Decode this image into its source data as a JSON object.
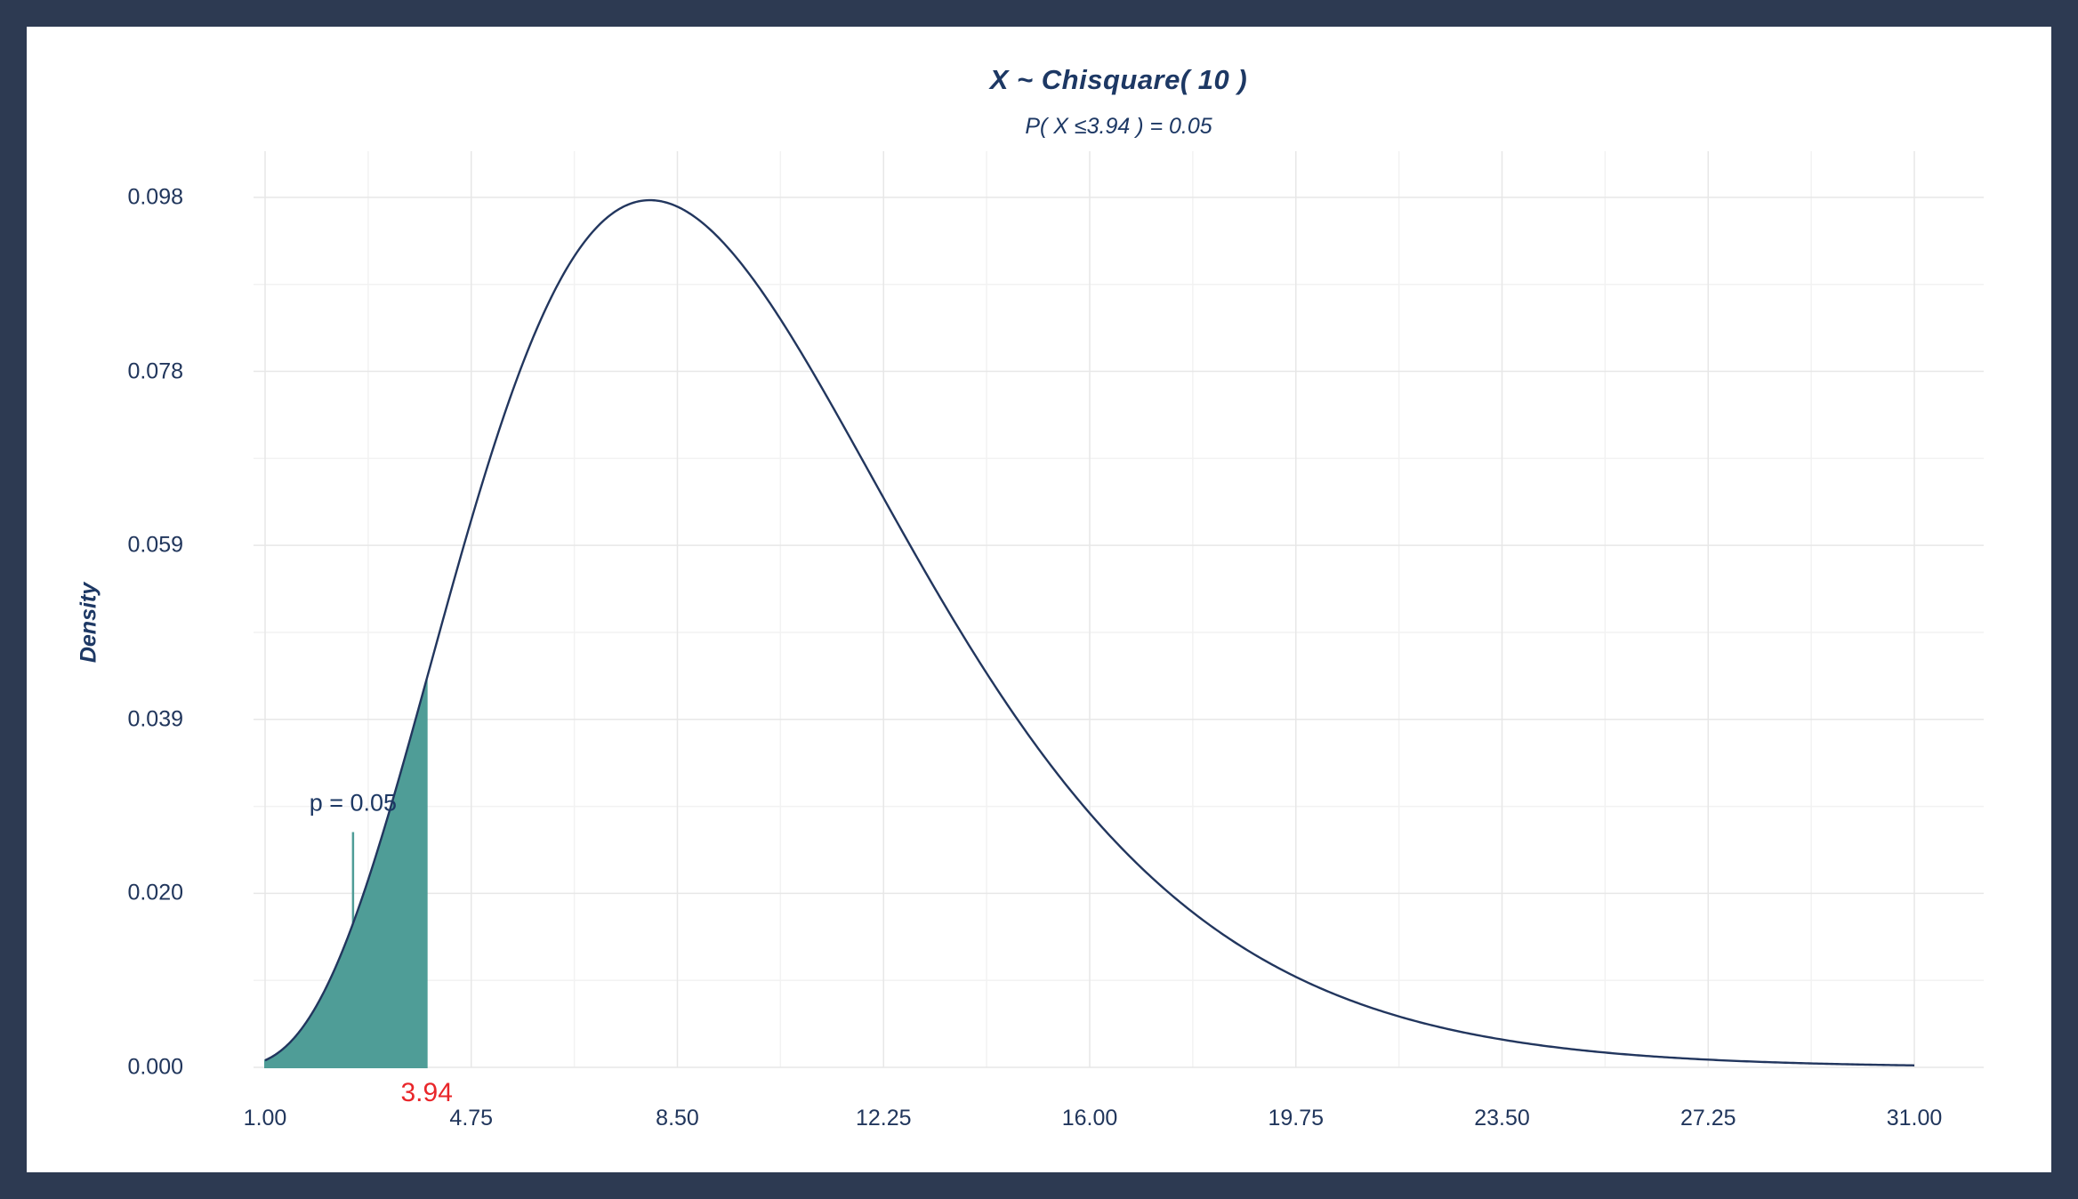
{
  "frame": {
    "background_color": "#2d3a52",
    "panel_color": "#ffffff"
  },
  "chart_data": {
    "type": "area",
    "title": "X ~ Chisquare( 10 )",
    "subtitle": "P( X ≤3.94 ) = 0.05",
    "xlabel": "",
    "ylabel": "Density",
    "distribution": {
      "name": "chisquare",
      "df": 10
    },
    "x_range": [
      1,
      31
    ],
    "ylim": [
      0,
      0.1032
    ],
    "grid": true,
    "legend": false,
    "x_ticks": [
      1.0,
      4.75,
      8.5,
      12.25,
      16.0,
      19.75,
      23.5,
      27.25,
      31.0
    ],
    "x_tick_labels": [
      "1.00",
      "4.75",
      "8.50",
      "12.25",
      "16.00",
      "19.75",
      "23.50",
      "27.25",
      "31.00"
    ],
    "y_ticks": [
      0,
      0.0196,
      0.0392,
      0.0588,
      0.0784,
      0.098
    ],
    "y_tick_labels": [
      "0.000",
      "0.020",
      "0.039",
      "0.059",
      "0.078",
      "0.098"
    ],
    "curve_color": "#22365e",
    "fill_color": "#4f9d97",
    "grid_major_color": "#e7e7e7",
    "grid_minor_color": "#f2f2f2",
    "shaded_region": {
      "from": 1,
      "to": 3.94,
      "probability": 0.05
    },
    "annotation": {
      "text": "p = 0.05",
      "x": 2.6,
      "y": 0.0298,
      "leader": {
        "x": 2.6,
        "y_from": 0.0265,
        "y_to": 0.016
      },
      "color": "#1d3864"
    },
    "critical_value": {
      "x": 3.94,
      "label": "3.94",
      "color": "#e9262a"
    },
    "sample_points": {
      "x": [
        1,
        2,
        3,
        4,
        5,
        6,
        7,
        8,
        9,
        10,
        11,
        12,
        13,
        14,
        15,
        16,
        17,
        18,
        19,
        20,
        21,
        22,
        23,
        24,
        25,
        26,
        27,
        28,
        29,
        30,
        31
      ],
      "density": [
        0.00079,
        0.00766,
        0.02353,
        0.04511,
        0.0668,
        0.08401,
        0.0944,
        0.09768,
        0.09491,
        0.08773,
        0.07791,
        0.06693,
        0.05591,
        0.04561,
        0.03646,
        0.02863,
        0.02213,
        0.01687,
        0.0127,
        0.00946,
        0.00697,
        0.00509,
        0.00369,
        0.00265,
        0.0019,
        0.00134,
        0.00095,
        0.00067,
        0.00046,
        0.00032,
        0.00022
      ]
    }
  }
}
